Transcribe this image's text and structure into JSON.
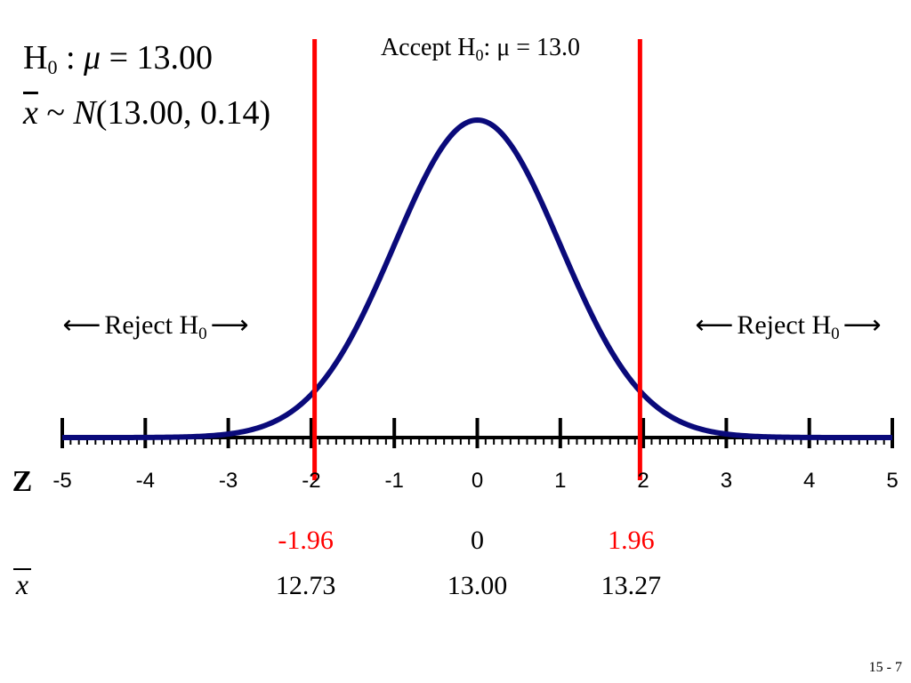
{
  "hypothesis": {
    "h_symbol": "H",
    "h_sub": "0",
    "h_sep": ":",
    "mu_symbol": "μ",
    "h_rest": "= 13.00",
    "xbar_symbol": "x",
    "dist_tilde": "~",
    "dist_symbol": "N",
    "dist_params": "(13.00, 0.14)"
  },
  "chart_data": {
    "type": "line",
    "title": "",
    "xlabel": "",
    "ylabel": "",
    "xlim": [
      -5,
      5
    ],
    "x_ticks": [
      -5,
      -4,
      -3,
      -2,
      -1,
      0,
      1,
      2,
      3,
      4,
      5
    ],
    "x_tick_labels": [
      "-5",
      "-4",
      "-3",
      "-2",
      "-1",
      "0",
      "1",
      "2",
      "3",
      "4",
      "5"
    ],
    "axis_label": "Z",
    "series": [
      {
        "curve": "standard normal density",
        "mean": 0,
        "sd": 1
      }
    ],
    "critical_values": [
      -1.96,
      1.96
    ],
    "accept_label": {
      "prefix": "Accept H",
      "sub": "0",
      "suffix": ": μ = 13.0"
    },
    "reject_label": {
      "left_arrow": "⟵",
      "text": "Reject H",
      "sub": "0",
      "right_arrow": "⟶"
    },
    "z_row": [
      "-1.96",
      "0",
      "1.96"
    ],
    "xbar_label": "x",
    "xbar_row": [
      "12.73",
      "13.00",
      "13.27"
    ],
    "colors": {
      "curve": "#0a0a7a",
      "critical": "#ff0000",
      "axis": "#000000"
    }
  },
  "footer": {
    "page": "15 -  7"
  }
}
